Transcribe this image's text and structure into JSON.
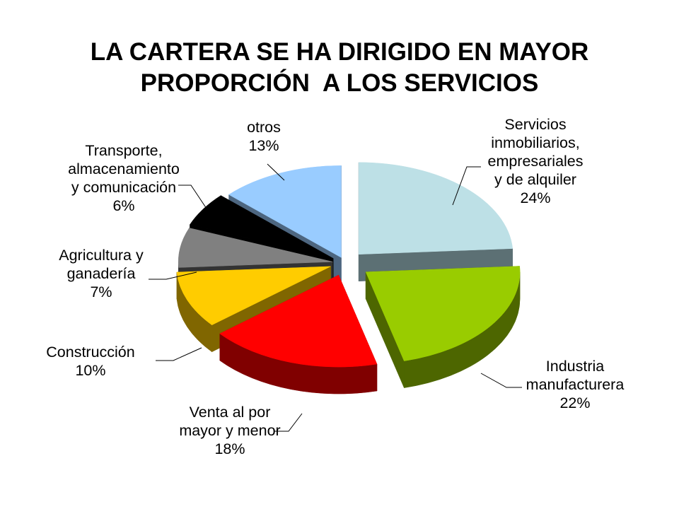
{
  "title": {
    "line1": "LA CARTERA SE HA DIRIGIDO EN MAYOR",
    "line2": "PROPORCIÓN  A LOS SERVICIOS"
  },
  "chart_data": {
    "type": "pie",
    "title": "LA CARTERA SE HA DIRIGIDO EN MAYOR PROPORCIÓN  A LOS SERVICIOS",
    "three_d": true,
    "exploded": true,
    "slices": [
      {
        "name": "Servicios inmobiliarios, empresariales y de alquiler",
        "label_lines": [
          "Servicios",
          "inmobiliarios,",
          "empresariales",
          "y de alquiler"
        ],
        "value": 24,
        "value_label": "24%",
        "color": "#bde0e6",
        "side_color": "#5c7074"
      },
      {
        "name": "Industria manufacturera",
        "label_lines": [
          "Industria",
          "manufacturera"
        ],
        "value": 22,
        "value_label": "22%",
        "color": "#99cc00",
        "side_color": "#4d6600"
      },
      {
        "name": "Venta al por mayor y menor",
        "label_lines": [
          "Venta al por",
          "mayor y menor"
        ],
        "value": 18,
        "value_label": "18%",
        "color": "#ff0000",
        "side_color": "#800000"
      },
      {
        "name": "Construcción",
        "label_lines": [
          "Construcción"
        ],
        "value": 10,
        "value_label": "10%",
        "color": "#ffcc00",
        "side_color": "#806600"
      },
      {
        "name": "Agricultura y ganadería",
        "label_lines": [
          "Agricultura y",
          "ganadería"
        ],
        "value": 7,
        "value_label": "7%",
        "color": "#808080",
        "side_color": "#333333"
      },
      {
        "name": "Transporte, almacenamiento y comunicación",
        "label_lines": [
          "Transporte,",
          "almacenamiento",
          "y comunicación"
        ],
        "value": 6,
        "value_label": "6%",
        "color": "#000000",
        "side_color": "#000000"
      },
      {
        "name": "otros",
        "label_lines": [
          "otros"
        ],
        "value": 13,
        "value_label": "13%",
        "color": "#99ccff",
        "side_color": "#4d6680"
      }
    ]
  }
}
